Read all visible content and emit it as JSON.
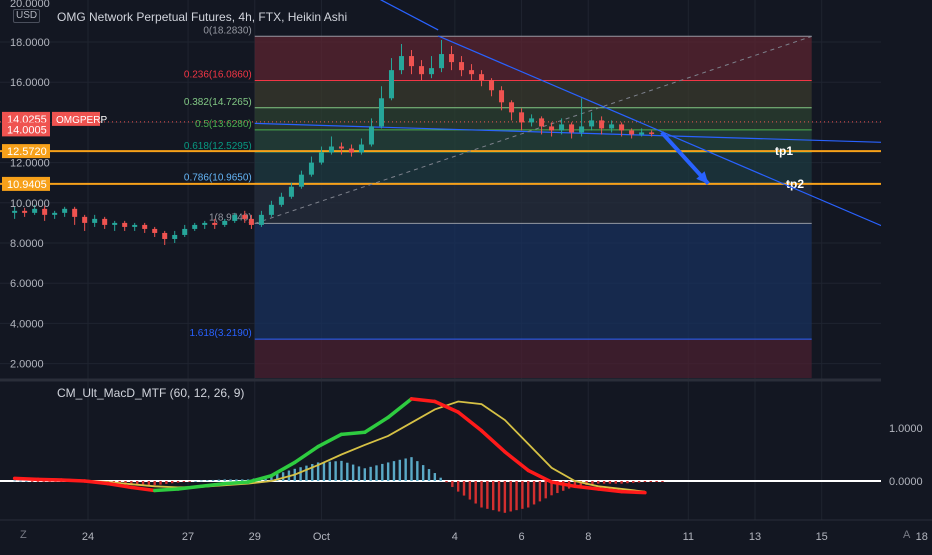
{
  "header": {
    "left_axis_top": "20.0000",
    "currency": "USD",
    "title": "OMG Network Perpetual Futures, 4h, FTX, Heikin Ashi"
  },
  "indicator": {
    "title": "CM_Ult_MacD_MTF (60, 12, 26, 9)"
  },
  "bottom_icons": {
    "left": "Z",
    "right": "A"
  },
  "colors": {
    "background": "#131722",
    "grid": "#1f2430",
    "bull": "#26a69a",
    "bear": "#ef5350",
    "orange": "#f7a11a",
    "trend": "#2962ff",
    "macd_up": "#2ecc40",
    "macd_down": "#ff1a1a",
    "signal": "#d6c145",
    "hist_up": "#5aa9c6",
    "hist_down": "#d32f2f"
  },
  "chart_data": [
    {
      "type": "candlestick",
      "style": "Heikin Ashi",
      "title": "OMG Network Perpetual Futures, 4h, FTX, Heikin Ashi",
      "ylim": [
        1.0,
        20.0
      ],
      "y_ticks": [
        "18.0000",
        "16.0000",
        "14.0000",
        "12.0000",
        "10.0000",
        "8.0000",
        "6.0000",
        "4.0000",
        "2.0000"
      ],
      "x_ticks": [
        "24",
        "27",
        "29",
        "Oct",
        "4",
        "6",
        "8",
        "11",
        "13",
        "15",
        "18"
      ],
      "x_tick_days": [
        24,
        27,
        29,
        31,
        35,
        37,
        39,
        42,
        44,
        46,
        49
      ],
      "x_range_days": [
        21.5,
        49
      ],
      "last_price_label": "OMGPERP",
      "price_labels": [
        {
          "text": "14.0255",
          "value": 14.0255,
          "color": "#ef5350"
        },
        {
          "text": "14.0005",
          "value": 14.0005,
          "color": "#ef5350"
        },
        {
          "text": "12.5720",
          "value": 12.572,
          "color": "#f7a11a"
        },
        {
          "text": "10.9405",
          "value": 10.9405,
          "color": "#f7a11a"
        }
      ],
      "horizontal_lines": [
        {
          "value": 12.572,
          "label": "tp1",
          "color": "#f7a11a"
        },
        {
          "value": 10.9405,
          "label": "tp2",
          "color": "#f7a11a"
        }
      ],
      "fibonacci": {
        "start_day": 29.0,
        "end_day": 45.7,
        "levels": [
          {
            "label": "0(18.2830)",
            "value": 18.283,
            "color": "#9598a1"
          },
          {
            "label": "0.236(16.0860)",
            "value": 16.086,
            "color": "#f23645"
          },
          {
            "label": "0.382(14.7265)",
            "value": 14.7265,
            "color": "#81c784"
          },
          {
            "label": "0.5(13.6280)",
            "value": 13.628,
            "color": "#4caf50"
          },
          {
            "label": "0.618(12.5295)",
            "value": 12.5295,
            "color": "#089981"
          },
          {
            "label": "0.786(10.9650)",
            "value": 10.965,
            "color": "#64b5f6"
          },
          {
            "label": "1(8.9740)",
            "value": 8.974,
            "color": "#9598a1"
          },
          {
            "label": "1.618(3.2190)",
            "value": 3.219,
            "color": "#2962ff"
          },
          {
            "label": "",
            "value": 1.0,
            "color": "#f23645"
          }
        ]
      },
      "candles": [
        {
          "t": 21.8,
          "o": 9.5,
          "c": 9.6,
          "h": 9.8,
          "l": 9.2
        },
        {
          "t": 22.1,
          "o": 9.6,
          "c": 9.5,
          "h": 9.75,
          "l": 9.3
        },
        {
          "t": 22.4,
          "o": 9.5,
          "c": 9.7,
          "h": 9.9,
          "l": 9.4
        },
        {
          "t": 22.7,
          "o": 9.7,
          "c": 9.4,
          "h": 9.85,
          "l": 9.1
        },
        {
          "t": 23.0,
          "o": 9.4,
          "c": 9.5,
          "h": 9.6,
          "l": 9.2
        },
        {
          "t": 23.3,
          "o": 9.5,
          "c": 9.7,
          "h": 9.8,
          "l": 9.3
        },
        {
          "t": 23.6,
          "o": 9.7,
          "c": 9.3,
          "h": 9.8,
          "l": 8.9
        },
        {
          "t": 23.9,
          "o": 9.3,
          "c": 9.0,
          "h": 9.4,
          "l": 8.6
        },
        {
          "t": 24.2,
          "o": 9.0,
          "c": 9.2,
          "h": 9.4,
          "l": 8.8
        },
        {
          "t": 24.5,
          "o": 9.2,
          "c": 8.9,
          "h": 9.3,
          "l": 8.7
        },
        {
          "t": 24.8,
          "o": 8.9,
          "c": 9.0,
          "h": 9.1,
          "l": 8.6
        },
        {
          "t": 25.1,
          "o": 9.0,
          "c": 8.8,
          "h": 9.1,
          "l": 8.6
        },
        {
          "t": 25.4,
          "o": 8.8,
          "c": 8.9,
          "h": 9.0,
          "l": 8.6
        },
        {
          "t": 25.7,
          "o": 8.9,
          "c": 8.7,
          "h": 9.0,
          "l": 8.5
        },
        {
          "t": 26.0,
          "o": 8.7,
          "c": 8.5,
          "h": 8.8,
          "l": 8.3
        },
        {
          "t": 26.3,
          "o": 8.5,
          "c": 8.2,
          "h": 8.6,
          "l": 7.9
        },
        {
          "t": 26.6,
          "o": 8.2,
          "c": 8.4,
          "h": 8.6,
          "l": 8.0
        },
        {
          "t": 26.9,
          "o": 8.4,
          "c": 8.7,
          "h": 8.9,
          "l": 8.3
        },
        {
          "t": 27.2,
          "o": 8.7,
          "c": 8.9,
          "h": 9.0,
          "l": 8.6
        },
        {
          "t": 27.5,
          "o": 8.9,
          "c": 9.0,
          "h": 9.1,
          "l": 8.7
        },
        {
          "t": 27.8,
          "o": 9.0,
          "c": 8.9,
          "h": 9.2,
          "l": 8.7
        },
        {
          "t": 28.1,
          "o": 8.9,
          "c": 9.1,
          "h": 9.2,
          "l": 8.8
        },
        {
          "t": 28.4,
          "o": 9.1,
          "c": 9.4,
          "h": 9.5,
          "l": 9.0
        },
        {
          "t": 28.7,
          "o": 9.4,
          "c": 9.2,
          "h": 9.6,
          "l": 9.0
        },
        {
          "t": 28.9,
          "o": 9.2,
          "c": 8.9,
          "h": 9.4,
          "l": 8.7
        },
        {
          "t": 29.2,
          "o": 8.9,
          "c": 9.4,
          "h": 9.6,
          "l": 8.8
        },
        {
          "t": 29.5,
          "o": 9.4,
          "c": 9.9,
          "h": 10.1,
          "l": 9.3
        },
        {
          "t": 29.8,
          "o": 9.9,
          "c": 10.3,
          "h": 10.5,
          "l": 9.8
        },
        {
          "t": 30.1,
          "o": 10.3,
          "c": 10.8,
          "h": 11.0,
          "l": 10.2
        },
        {
          "t": 30.4,
          "o": 10.8,
          "c": 11.4,
          "h": 11.6,
          "l": 10.7
        },
        {
          "t": 30.7,
          "o": 11.4,
          "c": 12.0,
          "h": 12.3,
          "l": 11.3
        },
        {
          "t": 31.0,
          "o": 12.0,
          "c": 12.5,
          "h": 12.8,
          "l": 11.9
        },
        {
          "t": 31.3,
          "o": 12.5,
          "c": 12.8,
          "h": 13.3,
          "l": 12.4
        },
        {
          "t": 31.6,
          "o": 12.8,
          "c": 12.7,
          "h": 13.0,
          "l": 12.4
        },
        {
          "t": 31.9,
          "o": 12.7,
          "c": 12.5,
          "h": 12.9,
          "l": 12.3
        },
        {
          "t": 32.2,
          "o": 12.5,
          "c": 12.9,
          "h": 13.2,
          "l": 12.4
        },
        {
          "t": 32.5,
          "o": 12.9,
          "c": 13.8,
          "h": 14.2,
          "l": 12.8
        },
        {
          "t": 32.8,
          "o": 13.8,
          "c": 15.2,
          "h": 15.8,
          "l": 13.7
        },
        {
          "t": 33.1,
          "o": 15.2,
          "c": 16.6,
          "h": 17.2,
          "l": 15.1
        },
        {
          "t": 33.4,
          "o": 16.6,
          "c": 17.3,
          "h": 17.9,
          "l": 16.4
        },
        {
          "t": 33.7,
          "o": 17.3,
          "c": 16.8,
          "h": 17.6,
          "l": 16.4
        },
        {
          "t": 34.0,
          "o": 16.8,
          "c": 16.4,
          "h": 17.1,
          "l": 16.1
        },
        {
          "t": 34.3,
          "o": 16.4,
          "c": 16.7,
          "h": 17.3,
          "l": 16.2
        },
        {
          "t": 34.6,
          "o": 16.7,
          "c": 17.4,
          "h": 18.1,
          "l": 16.5
        },
        {
          "t": 34.9,
          "o": 17.4,
          "c": 17.0,
          "h": 17.8,
          "l": 16.6
        },
        {
          "t": 35.2,
          "o": 17.0,
          "c": 16.6,
          "h": 17.3,
          "l": 16.3
        },
        {
          "t": 35.5,
          "o": 16.6,
          "c": 16.4,
          "h": 16.9,
          "l": 16.1
        },
        {
          "t": 35.8,
          "o": 16.4,
          "c": 16.1,
          "h": 16.6,
          "l": 15.8
        },
        {
          "t": 36.1,
          "o": 16.1,
          "c": 15.6,
          "h": 16.2,
          "l": 15.3
        },
        {
          "t": 36.4,
          "o": 15.6,
          "c": 15.0,
          "h": 15.8,
          "l": 14.6
        },
        {
          "t": 36.7,
          "o": 15.0,
          "c": 14.5,
          "h": 15.1,
          "l": 14.1
        },
        {
          "t": 37.0,
          "o": 14.5,
          "c": 14.0,
          "h": 14.7,
          "l": 13.6
        },
        {
          "t": 37.3,
          "o": 14.0,
          "c": 14.2,
          "h": 14.4,
          "l": 13.8
        },
        {
          "t": 37.6,
          "o": 14.2,
          "c": 13.8,
          "h": 14.3,
          "l": 13.4
        },
        {
          "t": 37.9,
          "o": 13.8,
          "c": 13.6,
          "h": 14.0,
          "l": 13.3
        },
        {
          "t": 38.2,
          "o": 13.6,
          "c": 13.9,
          "h": 14.2,
          "l": 13.4
        },
        {
          "t": 38.5,
          "o": 13.9,
          "c": 13.5,
          "h": 14.0,
          "l": 13.2
        },
        {
          "t": 38.8,
          "o": 13.5,
          "c": 13.8,
          "h": 15.2,
          "l": 13.3
        },
        {
          "t": 39.1,
          "o": 13.8,
          "c": 14.1,
          "h": 14.5,
          "l": 13.6
        },
        {
          "t": 39.4,
          "o": 14.1,
          "c": 13.7,
          "h": 14.3,
          "l": 13.4
        },
        {
          "t": 39.7,
          "o": 13.7,
          "c": 13.9,
          "h": 14.1,
          "l": 13.5
        },
        {
          "t": 40.0,
          "o": 13.9,
          "c": 13.6,
          "h": 14.0,
          "l": 13.3
        },
        {
          "t": 40.3,
          "o": 13.6,
          "c": 13.4,
          "h": 13.7,
          "l": 13.2
        },
        {
          "t": 40.6,
          "o": 13.4,
          "c": 13.5,
          "h": 13.7,
          "l": 13.3
        },
        {
          "t": 40.9,
          "o": 13.5,
          "c": 13.45,
          "h": 13.6,
          "l": 13.3
        }
      ],
      "trendlines": [
        {
          "name": "descending resistance",
          "from": [
            34.5,
            18.3
          ],
          "to": [
            49.0,
            8.0
          ]
        },
        {
          "name": "flat support",
          "from": [
            29.0,
            13.95
          ],
          "to": [
            49.0,
            12.95
          ]
        },
        {
          "name": "prior resistance",
          "from": [
            30.6,
            22.0
          ],
          "to": [
            34.5,
            18.6
          ]
        },
        {
          "name": "dashed diagonal",
          "from": [
            29.0,
            8.97
          ],
          "to": [
            45.7,
            18.28
          ]
        },
        {
          "name": "projection arrow",
          "from": [
            41.2,
            13.5
          ],
          "to": [
            42.6,
            10.95
          ]
        }
      ]
    },
    {
      "type": "line",
      "title": "CM_Ult_MacD_MTF (60, 12, 26, 9)",
      "ylim": [
        -0.6,
        2.0
      ],
      "y_ticks": [
        "1.0000",
        "0.0000"
      ],
      "x": [
        21.8,
        22.5,
        23.2,
        23.9,
        24.6,
        25.3,
        26.0,
        26.7,
        27.4,
        28.1,
        28.8,
        29.5,
        30.2,
        30.9,
        31.6,
        32.3,
        33.0,
        33.7,
        34.4,
        35.1,
        35.8,
        36.5,
        37.2,
        37.9,
        38.6,
        39.3,
        40.0,
        40.7
      ],
      "series": [
        {
          "name": "",
          "values": [
            0.05,
            0.03,
            0.02,
            0.0,
            -0.05,
            -0.12,
            -0.18,
            -0.15,
            -0.1,
            -0.05,
            -0.02,
            0.1,
            0.35,
            0.65,
            0.88,
            0.92,
            1.2,
            1.55,
            1.5,
            1.3,
            0.95,
            0.55,
            0.2,
            -0.02,
            -0.1,
            -0.15,
            -0.2,
            -0.22
          ]
        },
        {
          "name": "",
          "values": [
            0.04,
            0.04,
            0.03,
            0.01,
            -0.02,
            -0.06,
            -0.1,
            -0.12,
            -0.11,
            -0.08,
            -0.05,
            0.0,
            0.12,
            0.3,
            0.5,
            0.68,
            0.85,
            1.1,
            1.35,
            1.5,
            1.45,
            1.15,
            0.7,
            0.25,
            0.0,
            -0.1,
            -0.15,
            -0.2
          ]
        }
      ],
      "histogram": [
        0.01,
        -0.01,
        -0.01,
        -0.01,
        -0.03,
        -0.06,
        -0.08,
        -0.03,
        0.01,
        0.03,
        0.03,
        0.1,
        0.23,
        0.35,
        0.38,
        0.24,
        0.35,
        0.45,
        0.15,
        -0.2,
        -0.5,
        -0.6,
        -0.5,
        -0.27,
        -0.1,
        -0.05,
        -0.05,
        -0.02
      ]
    }
  ]
}
